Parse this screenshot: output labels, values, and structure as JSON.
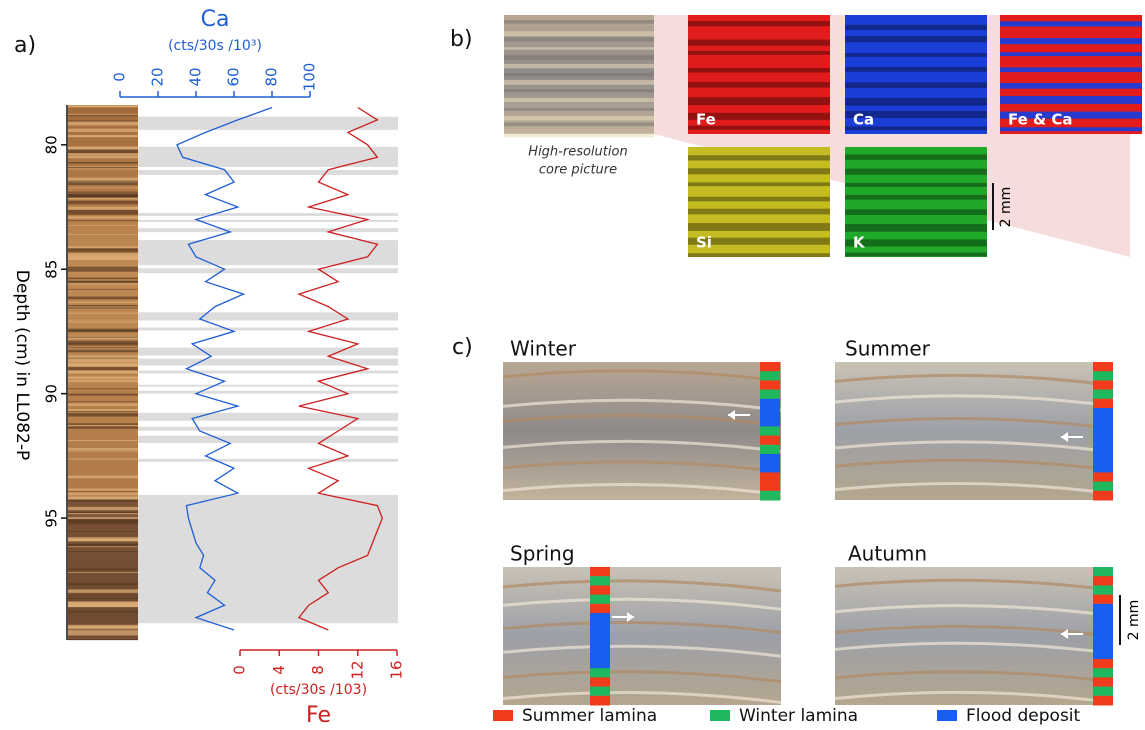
{
  "panels": {
    "a": "a)",
    "b": "b)",
    "c": "c)"
  },
  "chart_data": {
    "type": "depth-profile",
    "y_label": "Depth (cm) in LL082-P",
    "ylim": [
      78.4,
      99.9
    ],
    "yticks": [
      80,
      85,
      90,
      95
    ],
    "depth": [
      78.5,
      79,
      79.5,
      80,
      80.5,
      81,
      81.5,
      82,
      82.5,
      83,
      83.5,
      84,
      84.5,
      85,
      85.5,
      86,
      86.5,
      87,
      87.5,
      88,
      88.5,
      89,
      89.5,
      90,
      90.5,
      91,
      91.5,
      92,
      92.5,
      93,
      93.5,
      94,
      94.5,
      95,
      95.5,
      96,
      96.5,
      97,
      97.5,
      98,
      98.5,
      99,
      99.5
    ],
    "series": [
      {
        "name": "Ca",
        "unit": "(cts/30s /10³)",
        "color": "#1f5fd6",
        "axis": "top",
        "xlim": [
          0,
          100
        ],
        "xticks": [
          0,
          20,
          40,
          60,
          80,
          100
        ],
        "values": [
          80,
          62,
          45,
          30,
          33,
          55,
          60,
          45,
          62,
          40,
          58,
          36,
          40,
          55,
          45,
          65,
          50,
          42,
          60,
          38,
          48,
          35,
          55,
          40,
          62,
          38,
          42,
          58,
          45,
          60,
          50,
          62,
          35,
          36,
          38,
          40,
          44,
          42,
          50,
          46,
          55,
          40,
          60
        ]
      },
      {
        "name": "Fe",
        "unit": "(cts/30s /103)",
        "color": "#cc2020",
        "axis": "bottom",
        "xlim": [
          0,
          16
        ],
        "xticks": [
          0,
          4,
          8,
          12,
          16
        ],
        "values": [
          12,
          14,
          11,
          13,
          14,
          9,
          8,
          11,
          7,
          13,
          9,
          14,
          13,
          8,
          10,
          6,
          9,
          11,
          7,
          12,
          9,
          13,
          8,
          11,
          6,
          12,
          10,
          8,
          11,
          7,
          10,
          8,
          14,
          14.5,
          14,
          13.5,
          13,
          10,
          8,
          9,
          7,
          6,
          9
        ]
      }
    ],
    "flood_layers": [
      [
        78.87,
        79.4
      ],
      [
        80.08,
        80.89
      ],
      [
        81.01,
        81.21
      ],
      [
        82.74,
        82.86
      ],
      [
        83.02,
        83.1
      ],
      [
        83.35,
        83.51
      ],
      [
        83.83,
        84.84
      ],
      [
        84.96,
        85.16
      ],
      [
        86.73,
        87.06
      ],
      [
        87.34,
        87.46
      ],
      [
        88.15,
        88.47
      ],
      [
        88.59,
        88.87
      ],
      [
        89.07,
        89.19
      ],
      [
        89.64,
        89.72
      ],
      [
        89.88,
        90.0
      ],
      [
        90.77,
        91.09
      ],
      [
        91.33,
        91.49
      ],
      [
        91.69,
        91.98
      ],
      [
        92.62,
        92.74
      ],
      [
        94.07,
        99.23
      ]
    ],
    "flood_layer_color": "#dcdcdc"
  },
  "core_picture": {
    "caption": [
      "High-resolution",
      "core picture"
    ]
  },
  "element_maps": [
    {
      "label": "Fe",
      "color": "#e01c1c"
    },
    {
      "label": "Ca",
      "color": "#1c3ed8"
    },
    {
      "label": "Fe & Ca",
      "color": "#e01c1c"
    },
    {
      "label": "Si",
      "color": "#c4bc22"
    },
    {
      "label": "K",
      "color": "#20a828"
    }
  ],
  "scale_b": "2 mm",
  "seasons": [
    "Winter",
    "Summer",
    "Spring",
    "Autumn"
  ],
  "scale_c": "2 mm",
  "legend": [
    {
      "name": "Summer lamina",
      "color": "#f03c1c"
    },
    {
      "name": "Winter lamina",
      "color": "#20b85e"
    },
    {
      "name": "Flood deposit",
      "color": "#1a5ef0"
    }
  ]
}
